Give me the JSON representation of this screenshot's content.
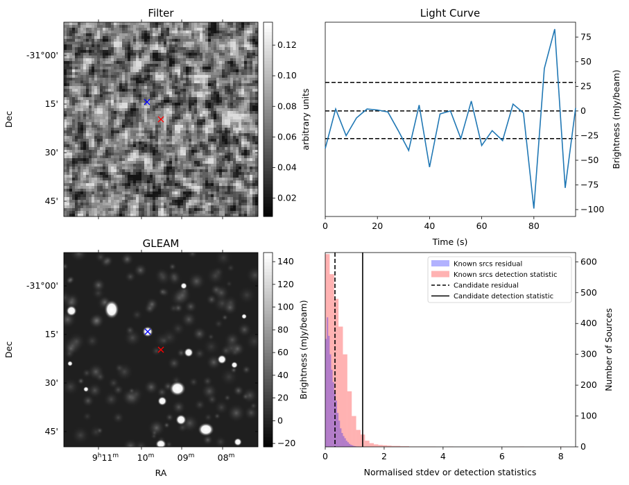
{
  "panels": {
    "filter": {
      "title": "Filter",
      "ylabel": "Dec",
      "dec_ticks": [
        "-31°00'",
        "15'",
        "30'",
        "45'"
      ],
      "colorbar": {
        "label": "arbitrary units",
        "range": [
          0.008,
          0.135
        ],
        "ticks": [
          0.02,
          0.04,
          0.06,
          0.08,
          0.1,
          0.12
        ],
        "tick_labels": [
          "0.02",
          "0.04",
          "0.06",
          "0.08",
          "0.10",
          "0.12"
        ]
      },
      "markers": [
        {
          "name": "blue-x-marker",
          "color": "#0000ff"
        },
        {
          "name": "red-x-marker",
          "color": "#ff0000"
        }
      ]
    },
    "gleam": {
      "title": "GLEAM",
      "ylabel": "Dec",
      "xlabel": "RA",
      "dec_ticks": [
        "-31°00'",
        "15'",
        "30'",
        "45'"
      ],
      "ra_ticks": [
        {
          "h": "9",
          "m": "11"
        },
        {
          "h": "",
          "m": "10"
        },
        {
          "h": "",
          "m": "09"
        },
        {
          "h": "",
          "m": "08"
        }
      ],
      "colorbar": {
        "label": "Brightness (mJy/beam)",
        "range": [
          -23,
          148
        ],
        "ticks": [
          -20,
          0,
          20,
          40,
          60,
          80,
          100,
          120,
          140
        ],
        "tick_labels": [
          "−20",
          "0",
          "20",
          "40",
          "60",
          "80",
          "100",
          "120",
          "140"
        ]
      },
      "markers": [
        {
          "name": "blue-x-marker",
          "color": "#0000ff"
        },
        {
          "name": "red-x-marker",
          "color": "#ff0000"
        }
      ]
    }
  },
  "chart_data": [
    {
      "type": "line",
      "title": "Light Curve",
      "xlabel": "Time (s)",
      "ylabel": "Brightness (mJy/beam)",
      "xlim": [
        0,
        96
      ],
      "ylim": [
        -107,
        90
      ],
      "xticks": [
        0,
        20,
        40,
        60,
        80
      ],
      "yticks": [
        -100,
        -75,
        -50,
        -25,
        0,
        25,
        50,
        75
      ],
      "ytick_labels": [
        "−100",
        "−75",
        "−50",
        "−25",
        "0",
        "25",
        "50",
        "75"
      ],
      "color": "#1f77b4",
      "x": [
        0,
        4,
        8,
        12,
        16,
        20,
        24,
        28,
        32,
        36,
        40,
        44,
        48,
        52,
        56,
        60,
        64,
        68,
        72,
        76,
        80,
        84,
        88,
        92,
        96
      ],
      "y": [
        -38,
        2,
        -25,
        -7,
        2,
        1,
        -1,
        -20,
        -40,
        6,
        -57,
        -3,
        0,
        -28,
        10,
        -35,
        -20,
        -30,
        7,
        -2,
        -99,
        43,
        83,
        -78,
        3
      ],
      "hlines": [
        {
          "y": 29,
          "style": "dashed",
          "color": "#000000"
        },
        {
          "y": 0,
          "style": "dashed",
          "color": "#000000"
        },
        {
          "y": -28,
          "style": "dashed",
          "color": "#000000"
        }
      ]
    },
    {
      "type": "histogram",
      "xlabel": "Normalised stdev or detection statistics",
      "ylabel": "Number of Sources",
      "xlim": [
        0,
        8.5
      ],
      "ylim": [
        0,
        630
      ],
      "xticks": [
        0,
        2,
        4,
        6,
        8
      ],
      "yticks": [
        0,
        100,
        200,
        300,
        400,
        500,
        600
      ],
      "legend": {
        "placement": "top-right",
        "entries": [
          {
            "label": "Known srcs residual",
            "kind": "patch",
            "color": "#0000ff",
            "alpha": 0.3
          },
          {
            "label": "Known srcs detection statistic",
            "kind": "patch",
            "color": "#ff0000",
            "alpha": 0.3
          },
          {
            "label": "Candidate residual",
            "kind": "dashed-line",
            "color": "#000000"
          },
          {
            "label": "Candidate detection statistic",
            "kind": "solid-line",
            "color": "#000000"
          }
        ]
      },
      "series": [
        {
          "name": "Known srcs residual",
          "color": "#0000ff",
          "alpha": 0.3,
          "bin_width": 0.05,
          "bin_start": 0.0,
          "counts": [
            350,
            420,
            360,
            300,
            250,
            210,
            175,
            150,
            110,
            85,
            60,
            45,
            35,
            28,
            20,
            15,
            10,
            7,
            5,
            3,
            2,
            1,
            1
          ]
        },
        {
          "name": "Known srcs detection statistic",
          "color": "#ff0000",
          "alpha": 0.3,
          "bin_width": 0.15,
          "bin_start": 0.0,
          "counts": [
            625,
            560,
            480,
            390,
            300,
            180,
            100,
            55,
            40,
            20,
            12,
            8,
            6,
            5,
            4,
            3,
            3,
            2,
            2,
            1,
            1,
            1,
            1,
            1,
            1,
            0,
            0,
            0,
            1,
            0,
            0,
            0,
            0,
            0,
            0,
            0,
            0,
            0,
            0,
            0,
            0,
            0,
            0,
            0,
            1,
            0,
            0,
            0,
            0,
            0,
            0,
            0,
            0,
            1
          ]
        }
      ],
      "vlines": [
        {
          "name": "Candidate residual",
          "x": 0.33,
          "style": "dashed",
          "color": "#000000"
        },
        {
          "name": "Candidate detection statistic",
          "x": 1.27,
          "style": "solid",
          "color": "#000000"
        }
      ]
    }
  ]
}
